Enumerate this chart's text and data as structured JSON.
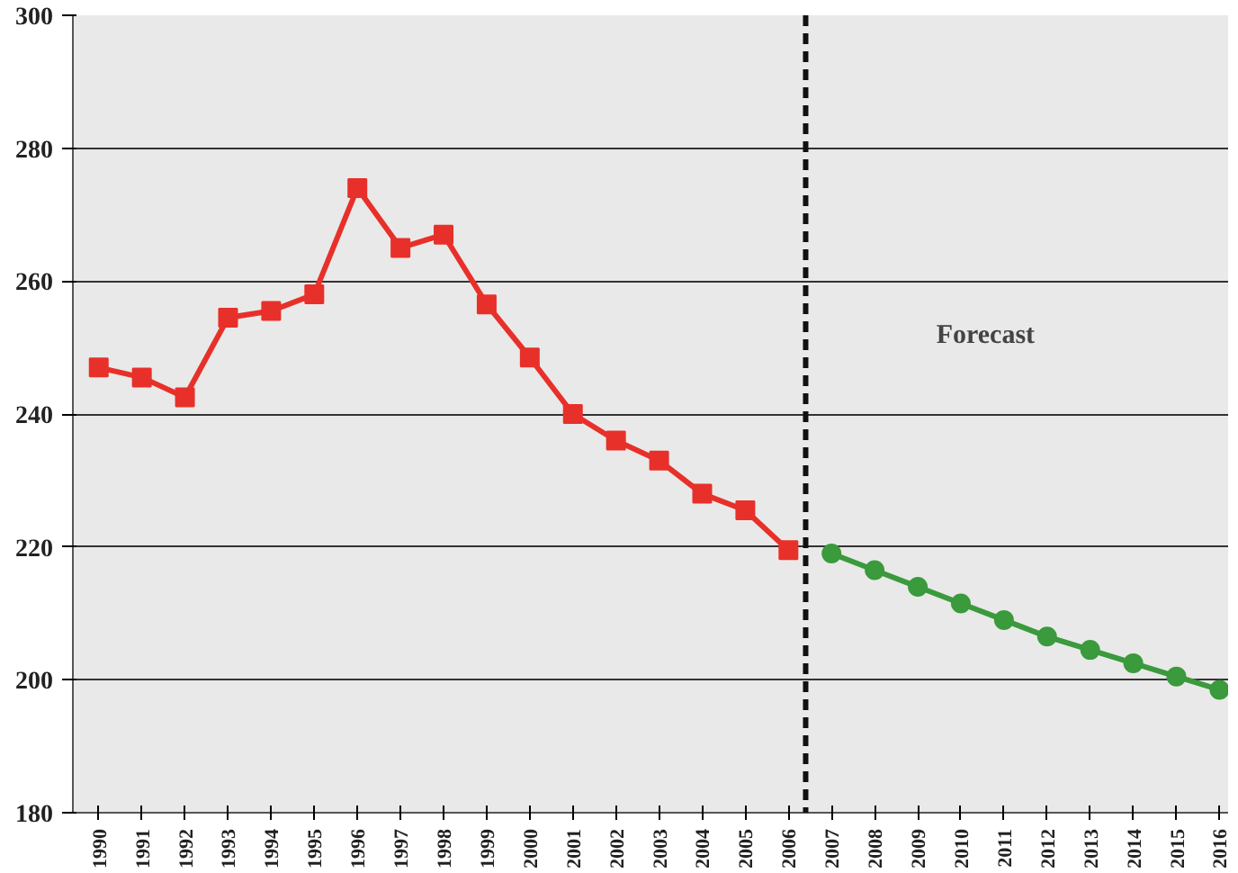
{
  "chart_data": {
    "type": "line",
    "x": [
      1990,
      1991,
      1992,
      1993,
      1994,
      1995,
      1996,
      1997,
      1998,
      1999,
      2000,
      2001,
      2002,
      2003,
      2004,
      2005,
      2006
    ],
    "series": [
      {
        "color": "#e8302a",
        "marker": "square",
        "values": [
          247,
          245.5,
          242.5,
          254.5,
          255.5,
          258,
          274,
          265,
          267,
          256.5,
          248.5,
          240,
          236,
          233,
          228,
          225.5,
          219.5
        ]
      },
      {
        "color": "#3a9a3c",
        "marker": "circle",
        "x": [
          2007,
          2008,
          2009,
          2010,
          2011,
          2012,
          2013,
          2014,
          2015,
          2016
        ],
        "values": [
          219,
          216.5,
          214,
          211.5,
          209,
          206.5,
          204.5,
          202.5,
          200.5,
          198.5
        ]
      }
    ],
    "xlim": [
      1989.4,
      2016.2
    ],
    "xticks": [
      1990,
      1991,
      1992,
      1993,
      1994,
      1995,
      1996,
      1997,
      1998,
      1999,
      2000,
      2001,
      2002,
      2003,
      2004,
      2005,
      2006,
      2007,
      2008,
      2009,
      2010,
      2011,
      2012,
      2013,
      2014,
      2015,
      2016
    ],
    "ylim": [
      180,
      300
    ],
    "yticks": [
      180,
      200,
      220,
      240,
      260,
      280,
      300
    ],
    "grid": "y",
    "ref_lines": [
      {
        "axis": "x",
        "value": 2006.4,
        "color": "#111111",
        "line_style": "dashed"
      }
    ],
    "annotations": [
      "Forecast"
    ]
  }
}
